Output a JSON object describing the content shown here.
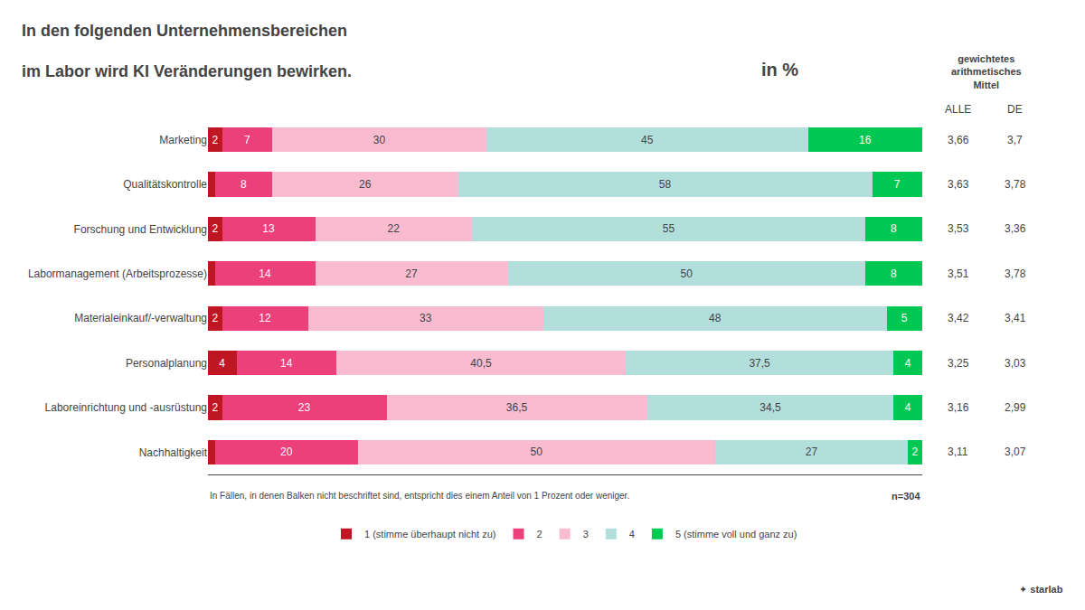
{
  "chart_data": {
    "type": "bar",
    "orientation": "horizontal",
    "stacked": true,
    "data_labels": true,
    "tick_labels": "y",
    "grid": false,
    "legend": "bottom",
    "title": "In den folgenden Unternehmensbereichen",
    "subtitle": "im Labor wird KI Veränderungen bewirken.",
    "categories": [
      "Marketing",
      "Qualitätskontrolle",
      "Forschung und Entwicklung",
      "Labormanagement (Arbeitsprozesse)",
      "Materialeinkauf/-verwaltung",
      "Personalplanung",
      "Laboreinrichtung und -ausrüstung",
      "Nachhaltigkeit"
    ],
    "xlim": [
      0,
      100
    ],
    "series": [
      {
        "name": "1 (stimme überhaupt nicht zu)",
        "color": "#BE1622",
        "values": [
          2,
          1,
          2,
          1,
          2,
          4,
          2,
          1
        ],
        "value_labels": [
          "2",
          null,
          "2",
          null,
          "2",
          "4",
          "2",
          null
        ]
      },
      {
        "name": "2",
        "color": "#EC407A",
        "values": [
          7,
          8,
          13,
          14,
          12,
          14,
          23,
          20
        ],
        "value_labels": [
          "7",
          "8",
          "13",
          "14",
          "12",
          "14",
          "23",
          "20"
        ]
      },
      {
        "name": "3",
        "color": "#F8BBD0",
        "values": [
          30,
          26,
          22,
          27,
          33,
          40.5,
          36.5,
          50
        ],
        "value_labels": [
          "30",
          "26",
          "22",
          "27",
          "33",
          "40,5",
          "36,5",
          "50"
        ]
      },
      {
        "name": "4",
        "color": "#B2DFDB",
        "values": [
          45,
          58,
          55,
          50,
          48,
          37.5,
          34.5,
          27
        ],
        "value_labels": [
          "45",
          "58",
          "55",
          "50",
          "48",
          "37,5",
          "34,5",
          "27"
        ]
      },
      {
        "name": "5 (stimme voll und ganz zu)",
        "color": "#00C853",
        "values": [
          16,
          7,
          8,
          8,
          5,
          4,
          4,
          2
        ],
        "value_labels": [
          "16",
          "7",
          "8",
          "8",
          "5",
          "4",
          "4",
          "2"
        ]
      }
    ],
    "alle": {
      "title": "ALLE",
      "values": [
        3.66,
        3.63,
        3.53,
        3.51,
        3.42,
        3.25,
        3.16,
        3.11
      ],
      "value_labels": [
        "3,66",
        "3,63",
        "3,53",
        "3,51",
        "3,42",
        "3,25",
        "3,16",
        "3,11"
      ]
    },
    "de": {
      "title": "DE",
      "values": [
        3.7,
        3.78,
        3.36,
        3.78,
        3.41,
        3.03,
        2.99,
        3.07
      ],
      "value_labels": [
        "3,7",
        "3,78",
        "3,36",
        "3,78",
        "3,41",
        "3,03",
        "2,99",
        "3,07"
      ]
    },
    "annotations": [
      "in %",
      "gewichtetes\narithmetisches\nMittel",
      "In Fällen, in denen Balken nicht beschriftet sind, entspricht dies einem Anteil von 1 Prozent oder weniger.",
      "n=304",
      "✦ starlab"
    ]
  }
}
